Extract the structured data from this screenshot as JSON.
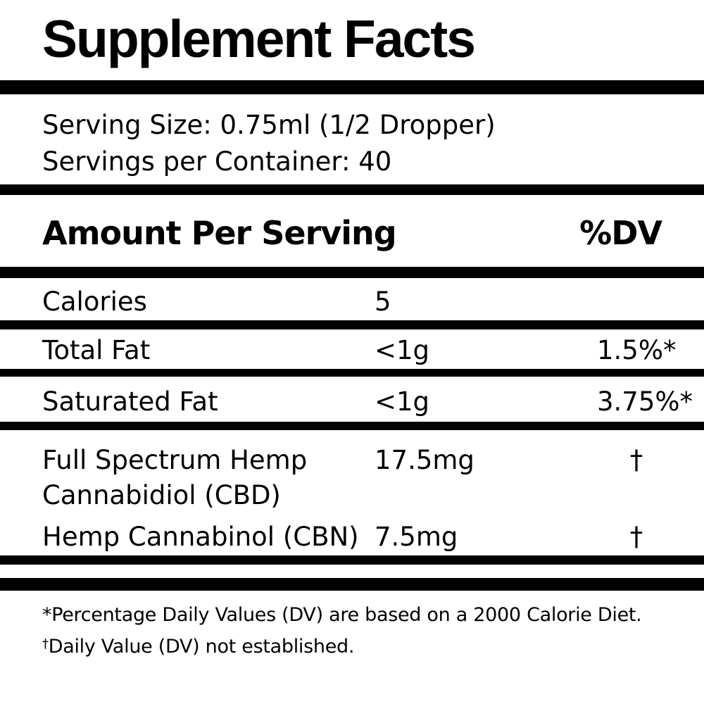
{
  "title": "Supplement Facts",
  "serving_info": {
    "serving_size": "Serving Size: 0.75ml (1/2 Dropper)",
    "servings_per_container": "Servings per Container: 40"
  },
  "table": {
    "header": {
      "amount_label": "Amount Per Serving",
      "dv_label": "%DV"
    },
    "rows": [
      {
        "name": "Calories",
        "amount": "5",
        "dv": ""
      },
      {
        "name": "Total Fat",
        "amount": "<1g",
        "dv": "1.5%*"
      },
      {
        "name": "Saturated Fat",
        "amount": "<1g",
        "dv": "3.75%*"
      },
      {
        "name": "Full Spectrum Hemp Cannabidiol (CBD)",
        "amount": "17.5mg",
        "dv": "†"
      },
      {
        "name": "Hemp Cannabinol (CBN)",
        "amount": "7.5mg",
        "dv": "†"
      }
    ]
  },
  "footnotes": {
    "line1": "*Percentage Daily Values (DV) are based on a 2000 Calorie Diet.",
    "line2_symbol": "†",
    "line2_text": "Daily Value (DV) not established."
  },
  "colors": {
    "background": "#ffffff",
    "text": "#000000",
    "bar": "#000000"
  }
}
